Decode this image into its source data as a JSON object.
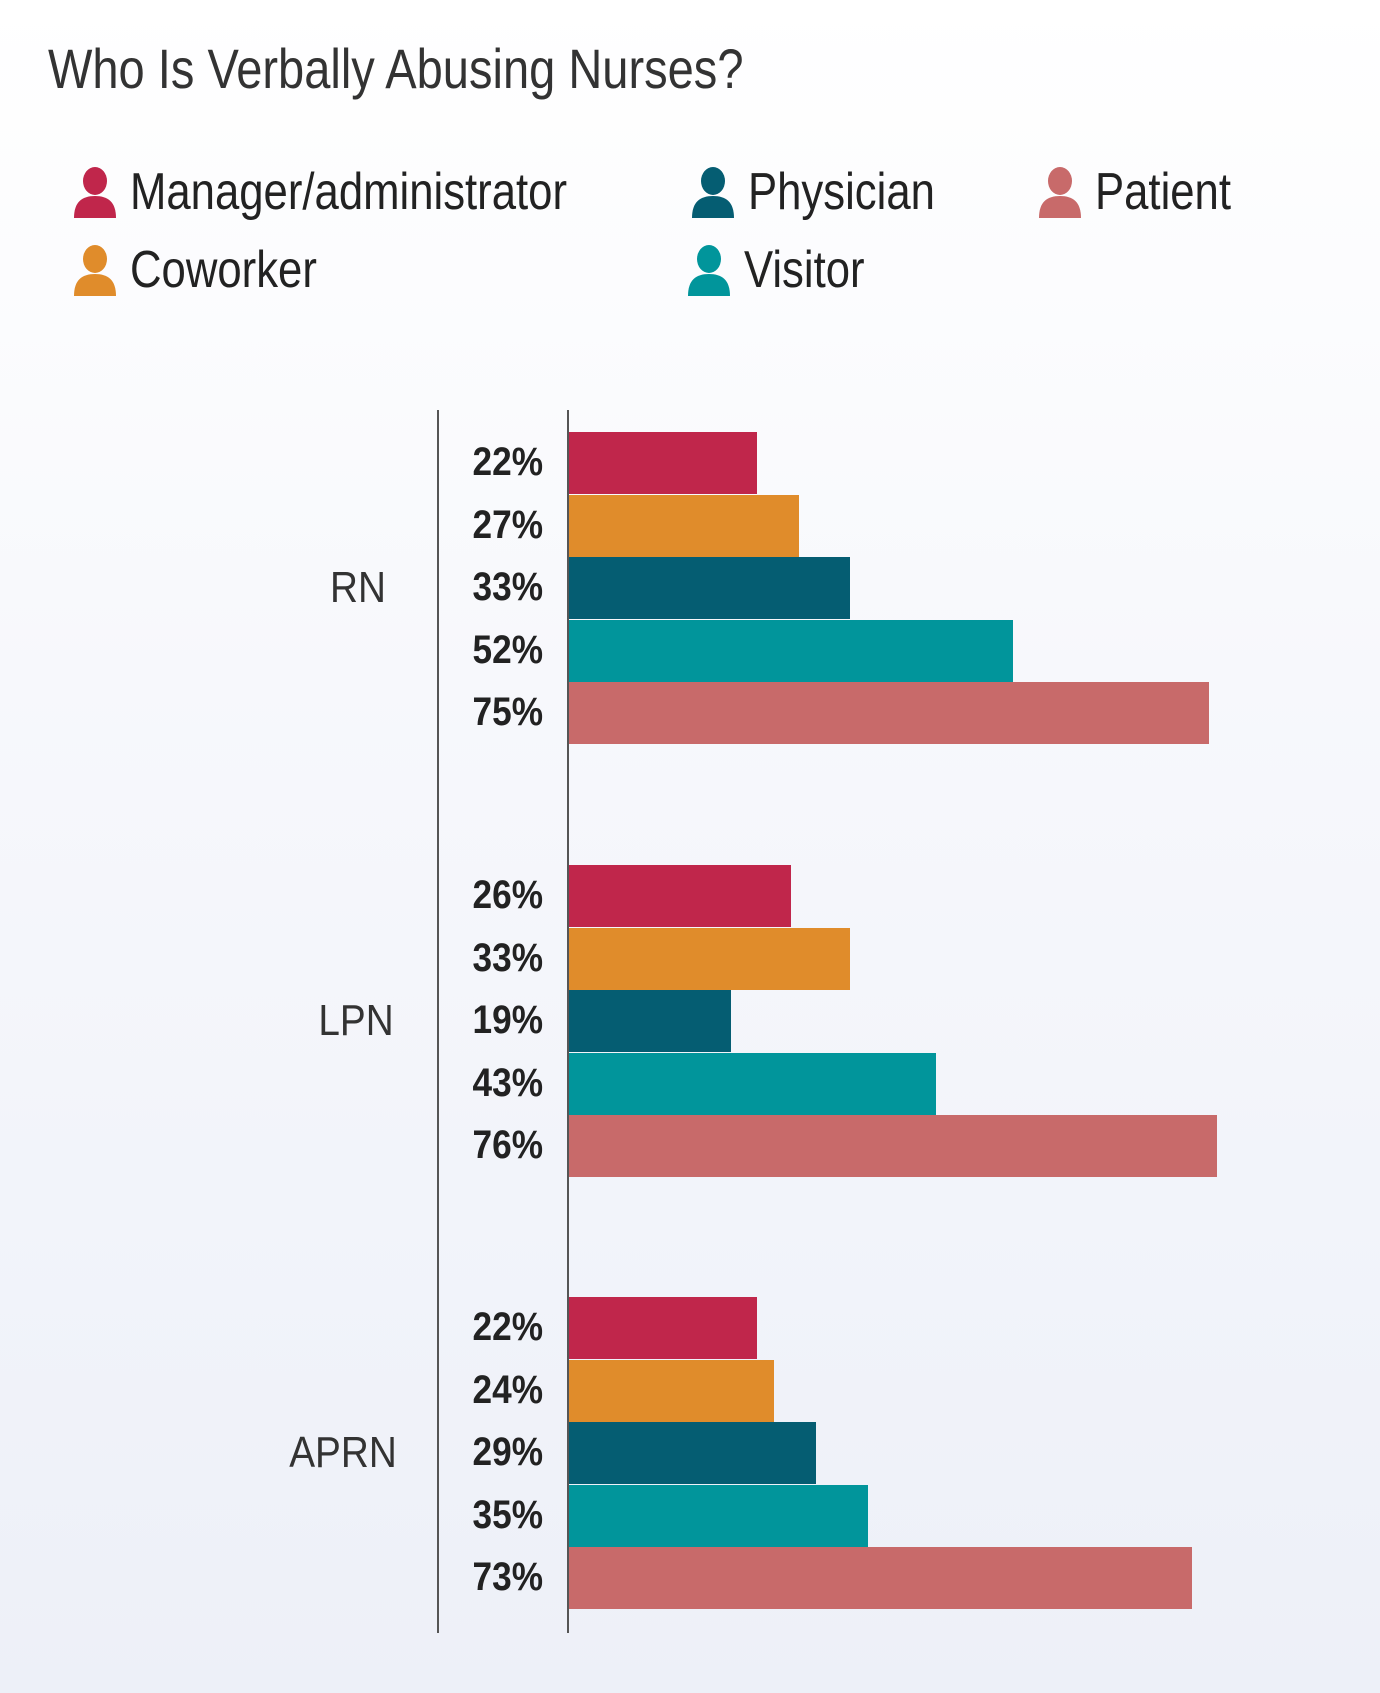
{
  "chart_data": {
    "type": "bar",
    "orientation": "horizontal",
    "title": "Who Is Verbally Abusing Nurses?",
    "categories": [
      "RN",
      "LPN",
      "APRN"
    ],
    "series": [
      {
        "name": "Manager/administrator",
        "color": "#c0264b",
        "values": [
          22,
          26,
          22
        ]
      },
      {
        "name": "Coworker",
        "color": "#e08c2b",
        "values": [
          27,
          33,
          24
        ]
      },
      {
        "name": "Physician",
        "color": "#055d72",
        "values": [
          33,
          19,
          29
        ]
      },
      {
        "name": "Visitor",
        "color": "#01959b",
        "values": [
          52,
          43,
          35
        ]
      },
      {
        "name": "Patient",
        "color": "#c86a6a",
        "values": [
          75,
          76,
          73
        ]
      }
    ],
    "value_format": "percent",
    "xlim": [
      0,
      100
    ],
    "grid": false,
    "legend_position": "top",
    "legend_icon": "person-icon"
  }
}
